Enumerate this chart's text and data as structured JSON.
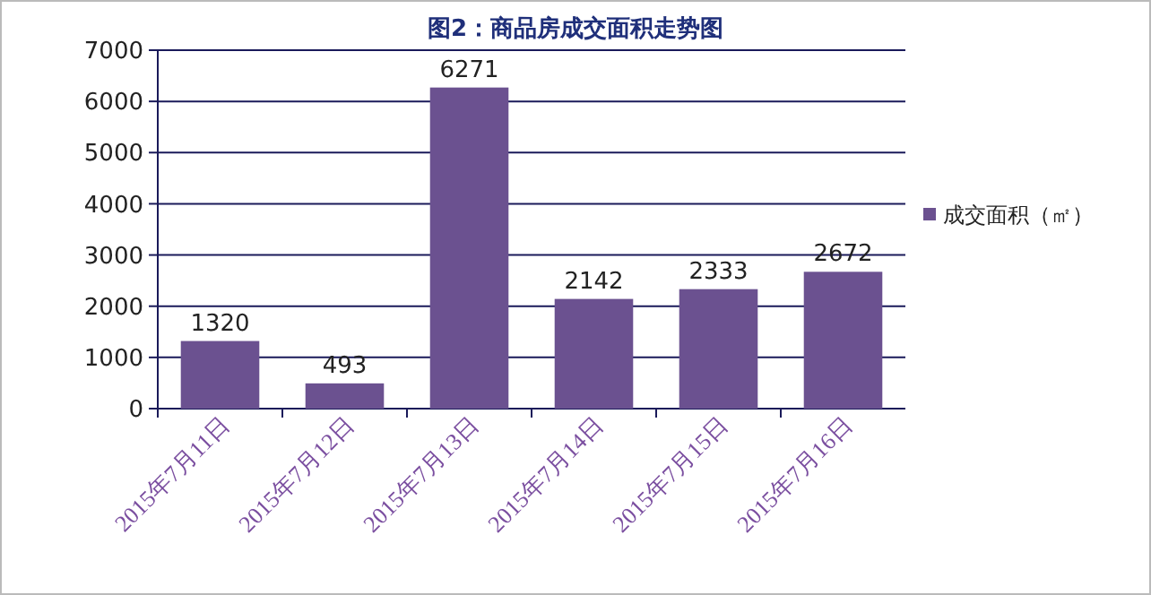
{
  "chart_data": {
    "type": "bar",
    "title": "图2：商品房成交面积走势图",
    "categories": [
      "2015年7月11日",
      "2015年7月12日",
      "2015年7月13日",
      "2015年7月14日",
      "2015年7月15日",
      "2015年7月16日"
    ],
    "series": [
      {
        "name": "成交面积（㎡）",
        "color": "#6b5190",
        "values": [
          1320,
          493,
          6271,
          2142,
          2333,
          2672
        ]
      }
    ],
    "ylim": [
      0,
      7000
    ],
    "yticks": [
      0,
      1000,
      2000,
      3000,
      4000,
      5000,
      6000,
      7000
    ],
    "grid": "y",
    "legend": "right",
    "data_labels": true
  }
}
